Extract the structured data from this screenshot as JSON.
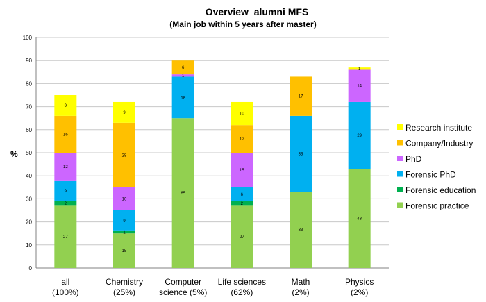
{
  "chart_data": {
    "type": "bar",
    "stacked": true,
    "title": "Overview  alumni MFS",
    "subtitle": "(Main job within 5 years after master)",
    "xlabel": "",
    "ylabel": "%",
    "ylim": [
      0,
      100
    ],
    "yticks": [
      0,
      10,
      20,
      30,
      40,
      50,
      60,
      70,
      80,
      90,
      100
    ],
    "grid": true,
    "legend_position": "right",
    "categories": [
      [
        "all",
        "(100%)"
      ],
      [
        "Chemistry",
        "(25%)"
      ],
      [
        "Computer",
        "science (5%)"
      ],
      [
        "Life sciences",
        "(62%)"
      ],
      [
        "Math",
        "(2%)"
      ],
      [
        "Physics",
        "(2%)"
      ]
    ],
    "series": [
      {
        "name": "Forensic practice",
        "color": "#92d050",
        "values": [
          27,
          15,
          65,
          27,
          33,
          43
        ],
        "labels": [
          "27",
          "15",
          "65",
          "27",
          "33",
          "43"
        ]
      },
      {
        "name": "Forensic education",
        "color": "#00b050",
        "values": [
          2,
          1,
          0,
          2,
          0,
          0
        ],
        "labels": [
          "2",
          "1",
          "",
          "2",
          "",
          ""
        ]
      },
      {
        "name": "Forensic PhD",
        "color": "#00b0f0",
        "values": [
          9,
          9,
          18,
          6,
          33,
          29
        ],
        "labels": [
          "9",
          "9",
          "18",
          "6",
          "33",
          "29"
        ]
      },
      {
        "name": "PhD",
        "color": "#cc66ff",
        "values": [
          12,
          10,
          1,
          15,
          0,
          14
        ],
        "labels": [
          "12",
          "10",
          "1",
          "15",
          "",
          "14"
        ]
      },
      {
        "name": "Company/Industry",
        "color": "#ffc000",
        "values": [
          16,
          28,
          6,
          12,
          17,
          0
        ],
        "labels": [
          "16",
          "28",
          "6",
          "12",
          "17",
          ""
        ]
      },
      {
        "name": "Research institute",
        "color": "#ffff00",
        "values": [
          9,
          9,
          0,
          10,
          0,
          1
        ],
        "labels": [
          "9",
          "9",
          "",
          "10",
          "",
          "1"
        ]
      }
    ]
  }
}
